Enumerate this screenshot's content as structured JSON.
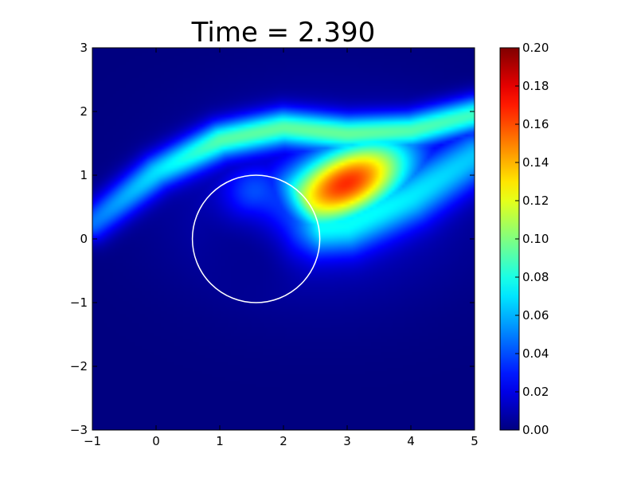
{
  "chart_data": {
    "type": "heatmap",
    "title": "Time = 2.390",
    "xlabel": "",
    "ylabel": "",
    "xlim": [
      -1,
      5
    ],
    "ylim": [
      -3,
      3
    ],
    "x_ticks": [
      "−1",
      "0",
      "1",
      "2",
      "3",
      "4",
      "5"
    ],
    "y_ticks": [
      "−3",
      "−2",
      "−1",
      "0",
      "1",
      "2",
      "3"
    ],
    "colorbar": {
      "colormap": "jet",
      "range": [
        0.0,
        0.2
      ],
      "ticks": [
        "0.00",
        "0.02",
        "0.04",
        "0.06",
        "0.08",
        "0.10",
        "0.12",
        "0.14",
        "0.16",
        "0.18",
        "0.20"
      ]
    },
    "circle_overlay": {
      "center": [
        1.57,
        0.0
      ],
      "radius": 1.0,
      "color": "#ffffff"
    },
    "field_features": [
      {
        "feature": "peak-blob",
        "center": [
          3.0,
          0.88
        ],
        "peak_value": 0.15
      },
      {
        "feature": "upper-arm-ridge",
        "path": [
          [
            -1.0,
            0.25
          ],
          [
            0.0,
            1.05
          ],
          [
            1.0,
            1.55
          ],
          [
            2.0,
            1.75
          ],
          [
            3.0,
            1.65
          ],
          [
            4.0,
            1.7
          ],
          [
            5.0,
            1.95
          ]
        ],
        "value": 0.085
      },
      {
        "feature": "lower-wake",
        "path": [
          [
            1.55,
            0.55
          ],
          [
            2.2,
            0.15
          ],
          [
            3.0,
            0.2
          ],
          [
            4.0,
            0.65
          ],
          [
            5.0,
            1.3
          ]
        ],
        "value": 0.06
      }
    ]
  }
}
